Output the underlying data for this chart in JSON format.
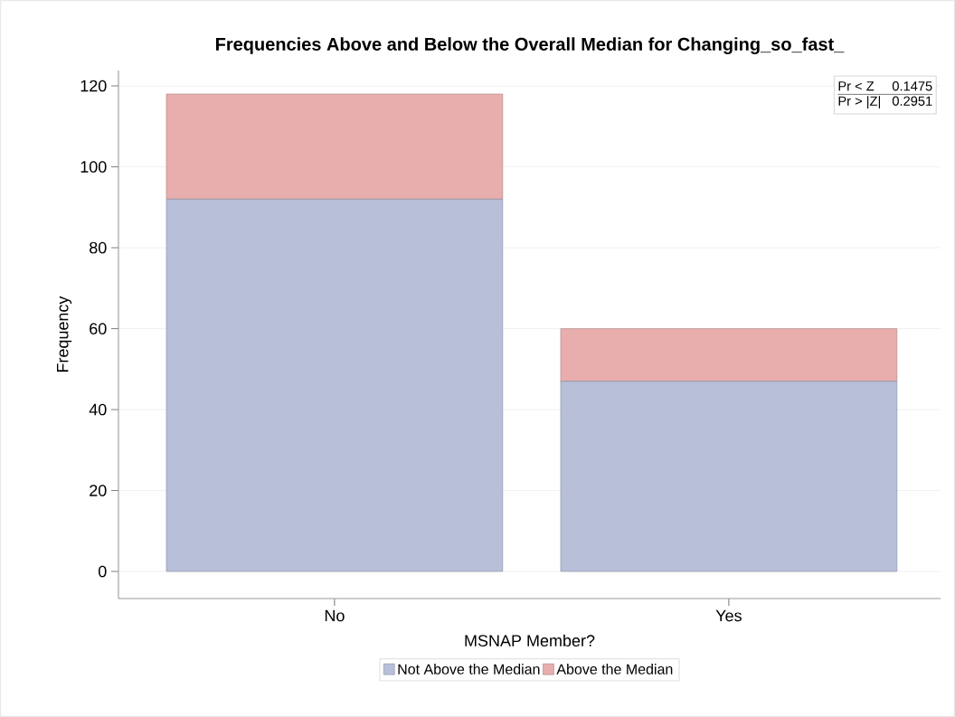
{
  "chart_data": {
    "type": "bar",
    "title": "Frequencies Above and Below the Overall Median for Changing_so_fast_",
    "xlabel": "MSNAP Member?",
    "ylabel": "Frequency",
    "categories": [
      "No",
      "Yes"
    ],
    "stacked": true,
    "series": [
      {
        "name": "Not Above the Median",
        "color": "#b7bfd9",
        "values": [
          92,
          47
        ]
      },
      {
        "name": "Above the Median",
        "color": "#e8adad",
        "values": [
          26,
          13
        ]
      }
    ],
    "ylim": [
      -6.7,
      123.8
    ],
    "yticks": [
      0,
      20,
      40,
      60,
      80,
      100,
      120
    ],
    "grid": "y",
    "legend": "bottom",
    "annotations": [
      "Pr < Z",
      "0.1475",
      "Pr > |Z|",
      "0.2951"
    ]
  }
}
